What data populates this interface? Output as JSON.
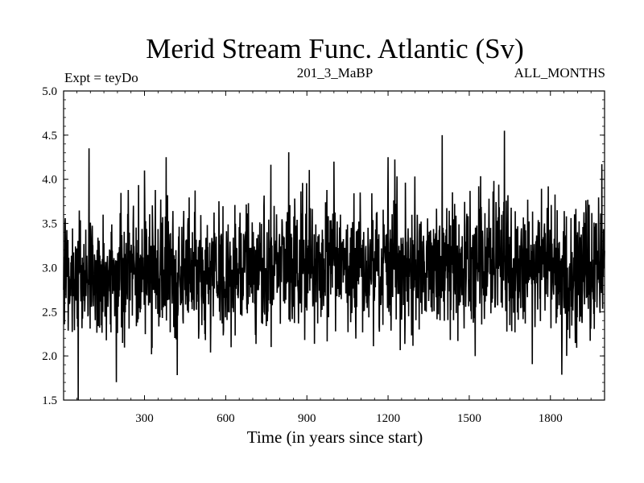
{
  "chart_data": {
    "type": "line",
    "title": "Merid Stream Func. Atlantic (Sv)",
    "subtitle_left": "Expt = teyDo",
    "subtitle_center": "201_3_MaBP",
    "subtitle_right": "ALL_MONTHS",
    "xlabel": "Time (in years since start)",
    "ylabel": "",
    "xlim": [
      1,
      2000
    ],
    "ylim": [
      1.5,
      5.0
    ],
    "xticks": [
      300,
      600,
      900,
      1200,
      1500,
      1800
    ],
    "xtick_labels": [
      "300",
      "600",
      "900",
      "1200",
      "1500",
      "1800"
    ],
    "yticks": [
      1.5,
      2.0,
      2.5,
      3.0,
      3.5,
      4.0,
      4.5,
      5.0
    ],
    "ytick_labels": [
      "1.5",
      "2.0",
      "2.5",
      "3.0",
      "3.5",
      "4.0",
      "4.5",
      "5.0"
    ],
    "grid": false,
    "series": [
      {
        "color": "#000000",
        "x": [
          1,
          100,
          200,
          300,
          400,
          500,
          600,
          700,
          800,
          900,
          1000,
          1100,
          1200,
          1300,
          1400,
          1500,
          1600,
          1700,
          1800,
          1900,
          2000
        ],
        "y": [
          2.95,
          2.85,
          2.95,
          2.95,
          2.95,
          2.9,
          2.95,
          2.95,
          3.05,
          3.05,
          3.1,
          3.0,
          3.05,
          3.0,
          3.05,
          3.0,
          3.15,
          3.05,
          3.0,
          2.95,
          3.05
        ],
        "notable_points": [
          {
            "x": 55,
            "y": 1.5
          },
          {
            "x": 95,
            "y": 4.35
          },
          {
            "x": 300,
            "y": 4.1
          },
          {
            "x": 380,
            "y": 4.25
          },
          {
            "x": 1000,
            "y": 4.2
          },
          {
            "x": 1200,
            "y": 4.25
          },
          {
            "x": 1400,
            "y": 4.5
          },
          {
            "x": 1630,
            "y": 4.55
          },
          {
            "x": 1860,
            "y": 2.0
          }
        ]
      }
    ]
  }
}
